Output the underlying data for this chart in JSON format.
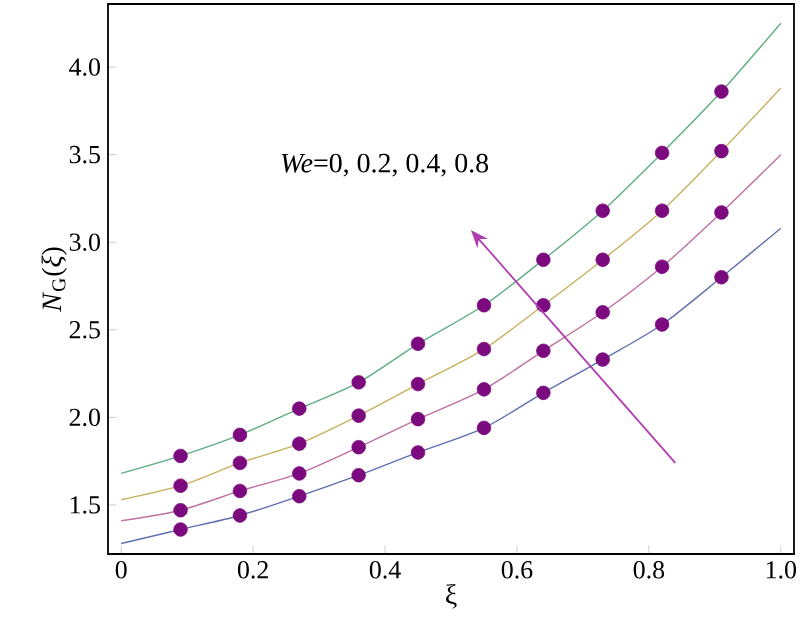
{
  "chart_data": {
    "type": "line",
    "xlabel": "ξ",
    "ylabel": "*N*$_{G}$(*ξ*)",
    "annotations": [
      "*We*=0, 0.2, 0.4, 0.8"
    ],
    "xlim": [
      -0.02,
      1.02
    ],
    "ylim": [
      1.22,
      4.36
    ],
    "xticks": [
      0,
      {
        "value": 0.2,
        "label": "0.2"
      },
      {
        "value": 0.4,
        "label": "0.4"
      },
      {
        "value": 0.6,
        "label": "0.6"
      },
      {
        "value": 0.8,
        "label": "0.8"
      },
      {
        "value": 1,
        "label": "1.0"
      }
    ],
    "yticks": [
      1.5,
      {
        "value": 2,
        "label": "2.0"
      },
      2.5,
      {
        "value": 3,
        "label": "3.0"
      },
      3.5,
      {
        "value": 4,
        "label": "4.0"
      }
    ],
    "series": [
      {
        "color": "#5fae83",
        "x": [
          0,
          0.09,
          0.18,
          0.27,
          0.36,
          0.45,
          0.55,
          0.64,
          0.73,
          0.82,
          0.91,
          1
        ],
        "values": [
          1.68,
          1.78,
          1.9,
          2.05,
          2.2,
          2.42,
          2.64,
          2.9,
          3.18,
          3.51,
          3.86,
          4.25
        ]
      },
      {
        "color": "#c8b060",
        "x": [
          0,
          0.09,
          0.18,
          0.27,
          0.36,
          0.45,
          0.55,
          0.64,
          0.73,
          0.82,
          0.91,
          1
        ],
        "values": [
          1.53,
          1.61,
          1.74,
          1.85,
          2.01,
          2.19,
          2.39,
          2.64,
          2.9,
          3.18,
          3.52,
          3.88
        ]
      },
      {
        "color": "#c070a0",
        "x": [
          0,
          0.09,
          0.18,
          0.27,
          0.36,
          0.45,
          0.55,
          0.64,
          0.73,
          0.82,
          0.91,
          1
        ],
        "values": [
          1.41,
          1.47,
          1.58,
          1.68,
          1.83,
          1.99,
          2.16,
          2.38,
          2.6,
          2.86,
          3.17,
          3.5
        ]
      },
      {
        "color": "#6070b0",
        "x": [
          0,
          0.09,
          0.18,
          0.27,
          0.36,
          0.45,
          0.55,
          0.64,
          0.73,
          0.82,
          0.91,
          1
        ],
        "values": [
          1.28,
          1.36,
          1.44,
          1.55,
          1.67,
          1.8,
          1.94,
          2.14,
          2.33,
          2.53,
          2.8,
          3.08
        ]
      },
      {
        "type": "scatter",
        "marker": "circle",
        "color": "#7a0a7e",
        "x": [
          0.09,
          0.18,
          0.27,
          0.36,
          0.45,
          0.55,
          0.64,
          0.73,
          0.82,
          0.91
        ],
        "values": [
          1.78,
          1.9,
          2.05,
          2.2,
          2.42,
          2.64,
          2.9,
          3.18,
          3.51,
          3.86
        ]
      },
      {
        "type": "scatter",
        "marker": "circle",
        "color": "#7a0a7e",
        "x": [
          0.09,
          0.18,
          0.27,
          0.36,
          0.45,
          0.55,
          0.64,
          0.73,
          0.82,
          0.91
        ],
        "values": [
          1.61,
          1.74,
          1.85,
          2.01,
          2.19,
          2.39,
          2.64,
          2.9,
          3.18,
          3.52
        ]
      },
      {
        "type": "scatter",
        "marker": "circle",
        "color": "#7a0a7e",
        "x": [
          0.09,
          0.18,
          0.27,
          0.36,
          0.45,
          0.55,
          0.64,
          0.73,
          0.82,
          0.91
        ],
        "values": [
          1.47,
          1.58,
          1.68,
          1.83,
          1.99,
          2.16,
          2.38,
          2.6,
          2.86,
          3.17
        ]
      },
      {
        "type": "scatter",
        "marker": "circle",
        "color": "#7a0a7e",
        "x": [
          0.09,
          0.18,
          0.27,
          0.36,
          0.45,
          0.55,
          0.64,
          0.73,
          0.82,
          0.91
        ],
        "values": [
          1.36,
          1.44,
          1.55,
          1.67,
          1.8,
          1.94,
          2.14,
          2.33,
          2.53,
          2.8
        ]
      }
    ]
  }
}
